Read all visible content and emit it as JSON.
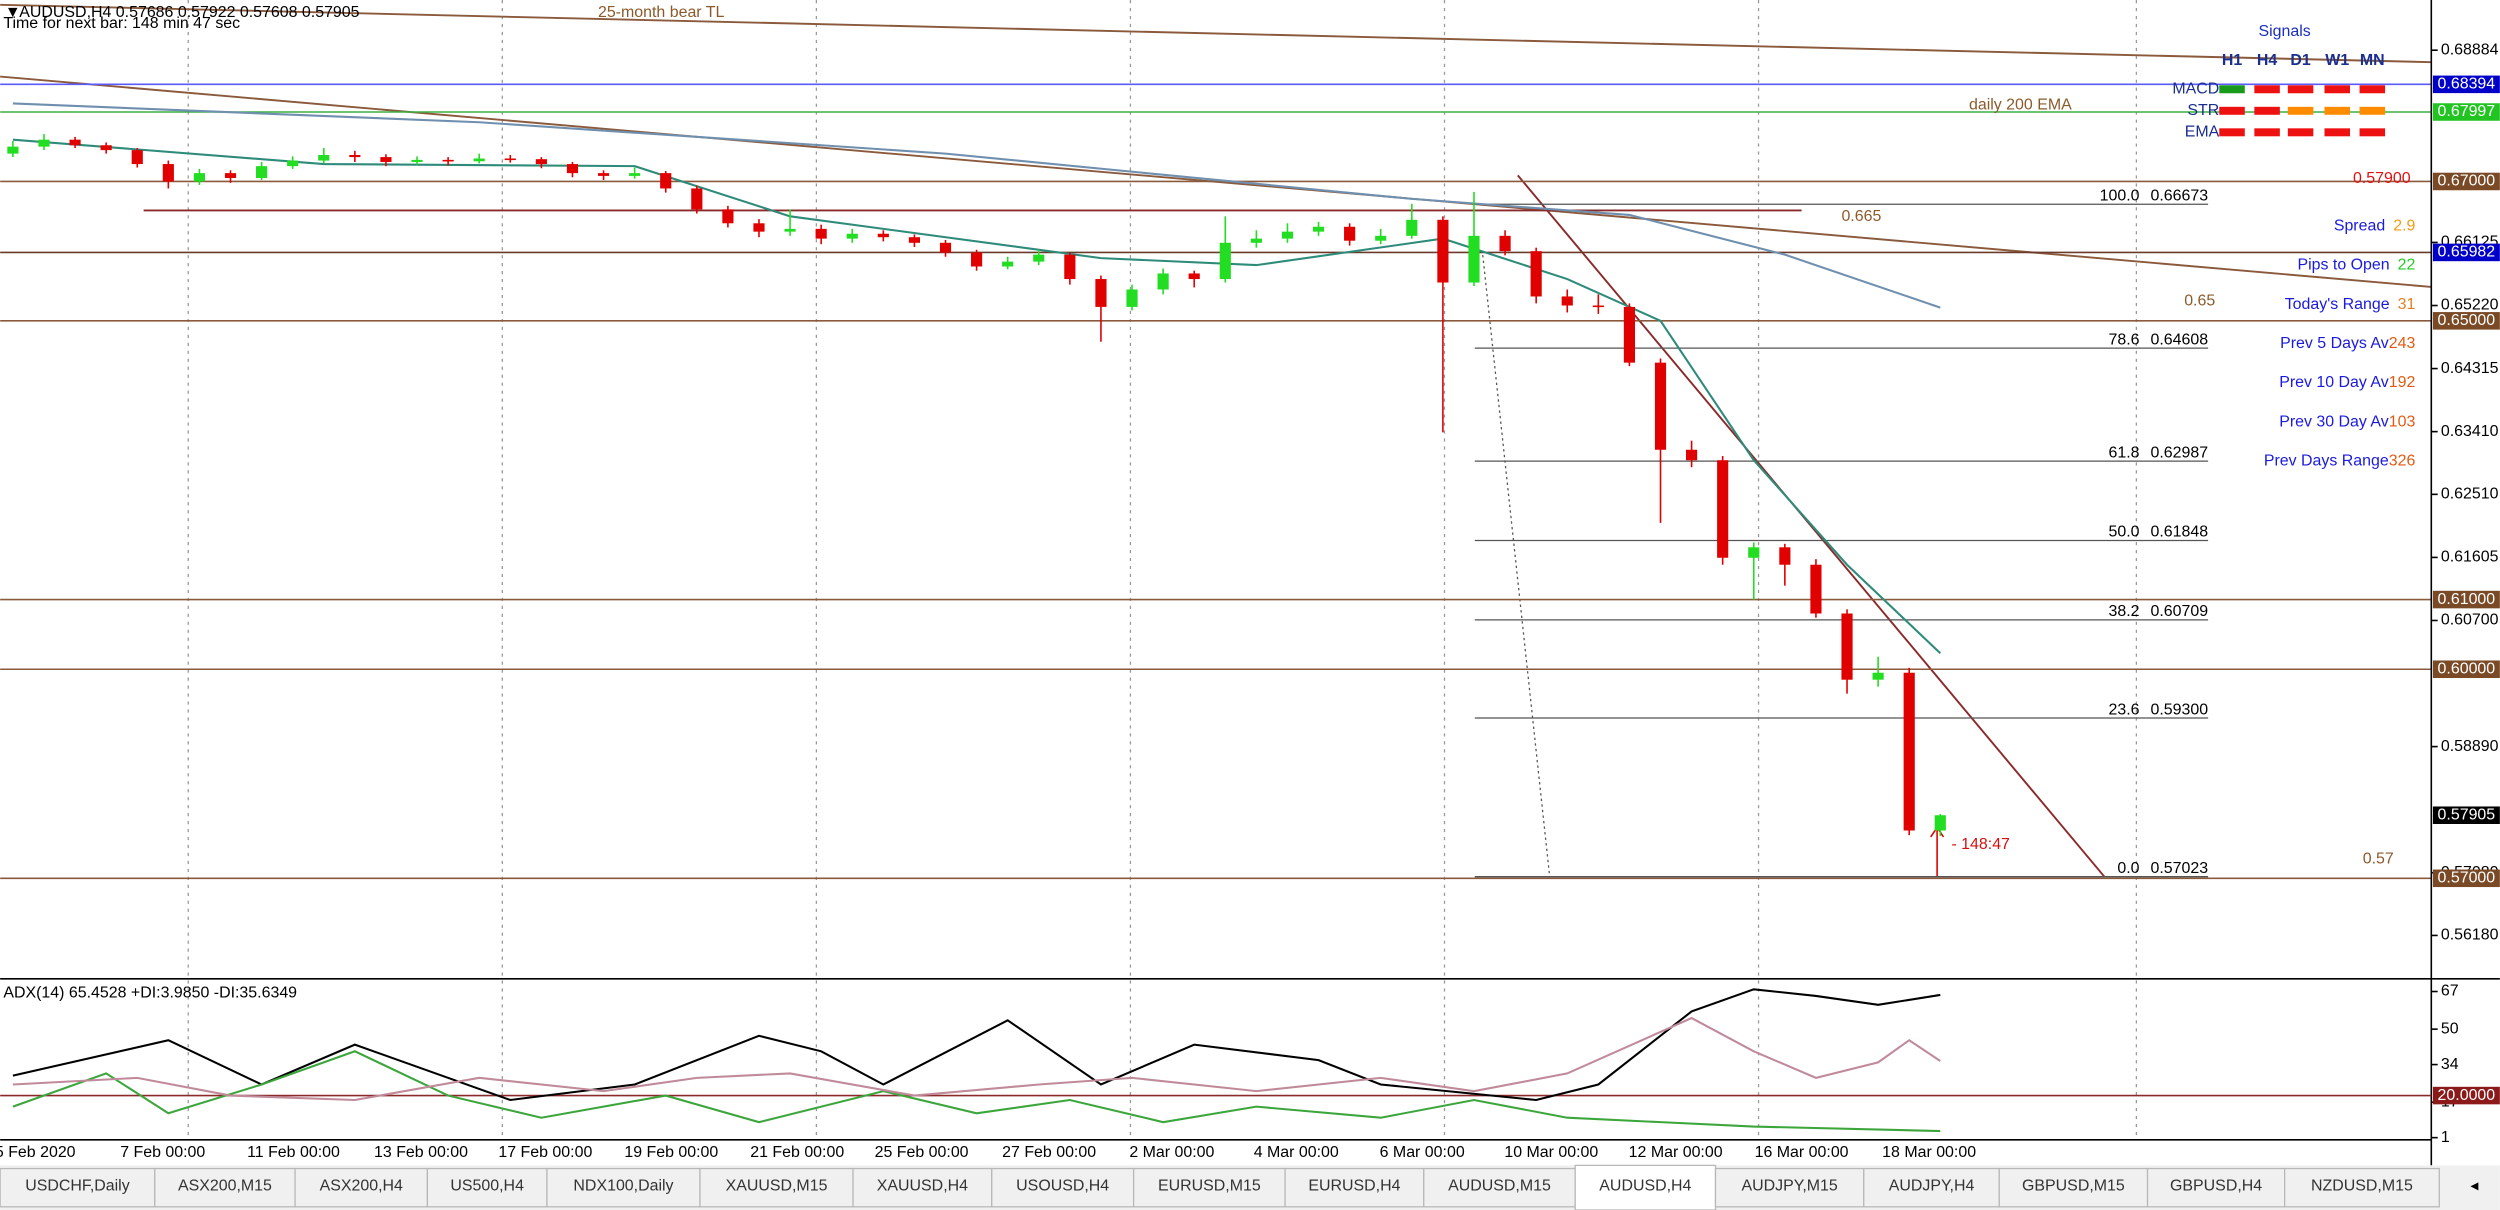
{
  "header": {
    "symbol_line": "AUDUSD,H4  0.57686 0.57922 0.57608 0.57905",
    "timer": "Time for next bar: 148 min 47 sec"
  },
  "chart": {
    "ylim": [
      0.5558,
      0.6949
    ],
    "yticks": [
      {
        "value": 0.68884,
        "label": "0.68884"
      },
      {
        "value": 0.66125,
        "label": "0.66125"
      },
      {
        "value": 0.6522,
        "label": "0.65220"
      },
      {
        "value": 0.64315,
        "label": "0.64315"
      },
      {
        "value": 0.6341,
        "label": "0.63410"
      },
      {
        "value": 0.6251,
        "label": "0.62510"
      },
      {
        "value": 0.61605,
        "label": "0.61605"
      },
      {
        "value": 0.607,
        "label": "0.60700"
      },
      {
        "value": 0.5889,
        "label": "0.58890"
      },
      {
        "value": 0.5708,
        "label": "0.57080"
      },
      {
        "value": 0.5618,
        "label": "0.56180"
      }
    ],
    "levels": [
      {
        "value": 0.68394,
        "label": "0.68394",
        "line_color": "#5a5aff",
        "box_color": "#0000c8"
      },
      {
        "value": 0.67997,
        "label": "0.67997",
        "line_color": "#3cb043",
        "box_color": "#22c422"
      },
      {
        "value": 0.67,
        "label": "0.67000",
        "line_color": "#8b5a3c",
        "box_color": "#7a4a26"
      },
      {
        "value": 0.65982,
        "label": "0.65982",
        "line_color": "#6b3a2a",
        "box_color": "#0000c8"
      },
      {
        "value": 0.65,
        "label": "0.65000",
        "line_color": "#8b5a3c",
        "box_color": "#7a4a26"
      },
      {
        "value": 0.61,
        "label": "0.61000",
        "line_color": "#8b5a3c",
        "box_color": "#7a4a26"
      },
      {
        "value": 0.6,
        "label": "0.60000",
        "line_color": "#8b5a3c",
        "box_color": "#7a4a26"
      },
      {
        "value": 0.57,
        "label": "0.57000",
        "line_color": "#8b5a3c",
        "box_color": "#7a4a26"
      }
    ],
    "bid": {
      "value": 0.57905,
      "label": "0.57905"
    },
    "fib": [
      {
        "ratio": "100.0",
        "value": 0.66673,
        "label": "0.66673"
      },
      {
        "ratio": "78.6",
        "value": 0.64608,
        "label": "0.64608"
      },
      {
        "ratio": "61.8",
        "value": 0.62987,
        "label": "0.62987"
      },
      {
        "ratio": "50.0",
        "value": 0.61848,
        "label": "0.61848"
      },
      {
        "ratio": "38.2",
        "value": 0.60709,
        "label": "0.60709"
      },
      {
        "ratio": "23.6",
        "value": 0.593,
        "label": "0.59300"
      },
      {
        "ratio": "0.0",
        "value": 0.57023,
        "label": "0.57023"
      }
    ],
    "up_color": "#22dd22",
    "down_color": "#e00000",
    "candles": [
      [
        0.674,
        0.6758,
        0.6735,
        0.675
      ],
      [
        0.675,
        0.6768,
        0.6745,
        0.676
      ],
      [
        0.676,
        0.6764,
        0.6748,
        0.6752
      ],
      [
        0.6752,
        0.6756,
        0.674,
        0.6745
      ],
      [
        0.6745,
        0.6748,
        0.672,
        0.6725
      ],
      [
        0.6725,
        0.673,
        0.669,
        0.67
      ],
      [
        0.67,
        0.6718,
        0.6695,
        0.6712
      ],
      [
        0.6712,
        0.6716,
        0.6698,
        0.6705
      ],
      [
        0.6705,
        0.6728,
        0.6702,
        0.6722
      ],
      [
        0.6722,
        0.6736,
        0.6718,
        0.673
      ],
      [
        0.673,
        0.6748,
        0.6726,
        0.6738
      ],
      [
        0.6738,
        0.6744,
        0.6728,
        0.6735
      ],
      [
        0.6735,
        0.6739,
        0.6722,
        0.6728
      ],
      [
        0.6728,
        0.6736,
        0.6724,
        0.6731
      ],
      [
        0.6731,
        0.6735,
        0.6723,
        0.6729
      ],
      [
        0.6729,
        0.674,
        0.6726,
        0.6733
      ],
      [
        0.6733,
        0.6738,
        0.6727,
        0.6732
      ],
      [
        0.6732,
        0.6735,
        0.6719,
        0.6725
      ],
      [
        0.6725,
        0.6728,
        0.6706,
        0.6712
      ],
      [
        0.6712,
        0.6716,
        0.6702,
        0.6708
      ],
      [
        0.6708,
        0.672,
        0.6704,
        0.6712
      ],
      [
        0.6712,
        0.6715,
        0.6684,
        0.669
      ],
      [
        0.669,
        0.6694,
        0.6654,
        0.666
      ],
      [
        0.666,
        0.6665,
        0.6634,
        0.664
      ],
      [
        0.664,
        0.6646,
        0.662,
        0.6628
      ],
      [
        0.6628,
        0.666,
        0.6622,
        0.6632
      ],
      [
        0.6632,
        0.6638,
        0.661,
        0.6618
      ],
      [
        0.6618,
        0.6632,
        0.6612,
        0.6625
      ],
      [
        0.6625,
        0.663,
        0.6614,
        0.662
      ],
      [
        0.662,
        0.6624,
        0.6606,
        0.6612
      ],
      [
        0.6612,
        0.6616,
        0.6592,
        0.6598
      ],
      [
        0.6598,
        0.6602,
        0.6572,
        0.6578
      ],
      [
        0.6578,
        0.6592,
        0.6574,
        0.6585
      ],
      [
        0.6585,
        0.6602,
        0.658,
        0.6595
      ],
      [
        0.6595,
        0.6598,
        0.6552,
        0.656
      ],
      [
        0.656,
        0.6565,
        0.647,
        0.652
      ],
      [
        0.652,
        0.6552,
        0.6515,
        0.6545
      ],
      [
        0.6545,
        0.6575,
        0.6538,
        0.6568
      ],
      [
        0.6568,
        0.6572,
        0.6548,
        0.656
      ],
      [
        0.656,
        0.665,
        0.6555,
        0.6612
      ],
      [
        0.6612,
        0.663,
        0.6605,
        0.6618
      ],
      [
        0.6618,
        0.664,
        0.6612,
        0.6628
      ],
      [
        0.6628,
        0.6642,
        0.6622,
        0.6635
      ],
      [
        0.6635,
        0.664,
        0.6608,
        0.6615
      ],
      [
        0.6615,
        0.6632,
        0.661,
        0.6622
      ],
      [
        0.6622,
        0.6668,
        0.6618,
        0.6645
      ],
      [
        0.6645,
        0.665,
        0.634,
        0.6555
      ],
      [
        0.6555,
        0.6685,
        0.655,
        0.6622
      ],
      [
        0.6622,
        0.663,
        0.6594,
        0.66
      ],
      [
        0.66,
        0.6605,
        0.6525,
        0.6535
      ],
      [
        0.6535,
        0.6545,
        0.6512,
        0.6522
      ],
      [
        0.6522,
        0.6538,
        0.651,
        0.652
      ],
      [
        0.652,
        0.6525,
        0.6435,
        0.644
      ],
      [
        0.644,
        0.6446,
        0.621,
        0.6315
      ],
      [
        0.6315,
        0.6328,
        0.629,
        0.63
      ],
      [
        0.63,
        0.6306,
        0.615,
        0.616
      ],
      [
        0.616,
        0.6182,
        0.61,
        0.6175
      ],
      [
        0.6175,
        0.618,
        0.612,
        0.615
      ],
      [
        0.615,
        0.6158,
        0.6074,
        0.608
      ],
      [
        0.608,
        0.6086,
        0.5965,
        0.5985
      ],
      [
        0.5985,
        0.6018,
        0.5975,
        0.5995
      ],
      [
        0.5995,
        0.6002,
        0.5762,
        0.57686
      ],
      [
        0.57686,
        0.57922,
        0.57608,
        0.57905
      ]
    ],
    "moving_averages": [
      {
        "color": "#6f8faf",
        "x": [
          0,
          15,
          30,
          45,
          52,
          57,
          62
        ],
        "values": [
          0.6812,
          0.6785,
          0.674,
          0.6675,
          0.6652,
          0.6595,
          0.6519
        ]
      },
      {
        "color": "#2e8b7a",
        "x": [
          0,
          10,
          20,
          25,
          35,
          40,
          46,
          50,
          53,
          56,
          59,
          62
        ],
        "values": [
          0.676,
          0.6725,
          0.6722,
          0.665,
          0.659,
          0.658,
          0.6618,
          0.656,
          0.65,
          0.63,
          0.615,
          0.6023
        ]
      }
    ],
    "annotations": {
      "bear_tl": "25-month bear TL",
      "ema": "daily 200 EMA",
      "level_665": "0.665",
      "level_65": "0.65",
      "level_57": "0.57",
      "countdown": "- 148:47"
    },
    "dates": [
      "5 Feb 2020",
      "7 Feb 00:00",
      "11 Feb 00:00",
      "13 Feb 00:00",
      "17 Feb 00:00",
      "19 Feb 00:00",
      "21 Feb 00:00",
      "25 Feb 00:00",
      "27 Feb 00:00",
      "2 Mar 00:00",
      "4 Mar 00:00",
      "6 Mar 00:00",
      "10 Mar 00:00",
      "12 Mar 00:00",
      "16 Mar 00:00",
      "18 Mar 00:00"
    ]
  },
  "indicator": {
    "label": "ADX(14) 65.4528 +DI:3.9850 -DI:35.6349",
    "ylim": [
      0,
      72
    ],
    "yticks": [
      67,
      50,
      34,
      17,
      1
    ],
    "level": {
      "value": 20,
      "label": "20.0000"
    },
    "lines": [
      {
        "color": "#000000",
        "x": [
          0,
          5,
          8,
          11,
          16,
          20,
          24,
          26,
          28,
          32,
          35,
          38,
          42,
          44,
          49,
          51,
          54,
          56,
          58,
          60,
          62
        ],
        "values": [
          29,
          45,
          25,
          43,
          18,
          25,
          47,
          40,
          25,
          54,
          25,
          43,
          36,
          25,
          18,
          25,
          58,
          68,
          65,
          61,
          65.45
        ]
      },
      {
        "color": "#3ca63c",
        "x": [
          0,
          3,
          5,
          8,
          10,
          11,
          14,
          17,
          21,
          24,
          28,
          31,
          34,
          37,
          40,
          44,
          47,
          50,
          53,
          56,
          62
        ],
        "values": [
          15,
          30,
          12,
          25,
          35,
          40,
          20,
          10,
          20,
          8,
          22,
          12,
          18,
          8,
          15,
          10,
          18,
          10,
          8,
          6,
          3.985
        ]
      },
      {
        "color": "#c08a9a",
        "x": [
          0,
          4,
          7,
          11,
          15,
          19,
          22,
          25,
          29,
          33,
          36,
          40,
          44,
          47,
          50,
          54,
          56,
          58,
          60,
          61,
          62
        ],
        "values": [
          25,
          28,
          20,
          18,
          28,
          22,
          28,
          30,
          20,
          25,
          28,
          22,
          28,
          22,
          30,
          55,
          40,
          28,
          35,
          45,
          35.6349
        ]
      }
    ]
  },
  "panel": {
    "title": "Signals",
    "columns": [
      "H1",
      "H4",
      "D1",
      "W1",
      "MN"
    ],
    "rows": [
      {
        "name": "MACD",
        "colors": [
          "#1a9a1a",
          "#ee1111",
          "#ee1111",
          "#ee1111",
          "#ee1111"
        ]
      },
      {
        "name": "STR",
        "colors": [
          "#ee1111",
          "#ee1111",
          "#ff8c00",
          "#ff8c00",
          "#ff8c00"
        ]
      },
      {
        "name": "EMA",
        "colors": [
          "#ee1111",
          "#ee1111",
          "#ee1111",
          "#ee1111",
          "#ee1111"
        ]
      }
    ],
    "price": {
      "value": 0.579,
      "label": "0.57900"
    },
    "stats": [
      {
        "label": "Spread",
        "value": 2.9,
        "color": "#f39c12"
      },
      {
        "label": "Pips to Open",
        "value": 22,
        "color": "#22cc22"
      },
      {
        "label": "Today's Range",
        "value": 31,
        "color": "#e67e22"
      },
      {
        "label": "Prev 5 Days Av",
        "value": 243,
        "color": "#e25a12"
      },
      {
        "label": "Prev 10 Day Av",
        "value": 192,
        "color": "#e25a12"
      },
      {
        "label": "Prev 30 Day Av",
        "value": 103,
        "color": "#e25a12"
      },
      {
        "label": "Prev Days Range",
        "value": 326,
        "color": "#e25a12"
      }
    ]
  },
  "tabs": {
    "items": [
      "USDCHF,Daily",
      "ASX200,M15",
      "ASX200,H4",
      "US500,H4",
      "NDX100,Daily",
      "XAUUSD,M15",
      "XAUUSD,H4",
      "USOUSD,H4",
      "EURUSD,M15",
      "EURUSD,H4",
      "AUDUSD,M15",
      "AUDUSD,H4",
      "AUDJPY,M15",
      "AUDJPY,H4",
      "GBPUSD,M15",
      "GBPUSD,H4",
      "NZDUSD,M15"
    ],
    "active": 11
  }
}
